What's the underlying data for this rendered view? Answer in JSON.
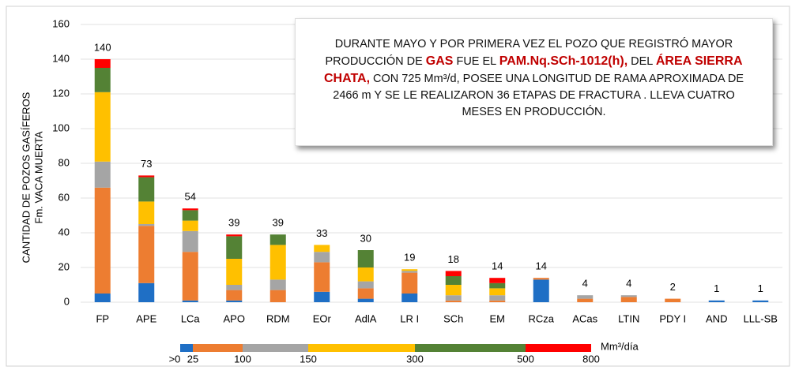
{
  "chart_data": {
    "type": "stacked_bar",
    "y_label": [
      "CANTIDAD DE POZOS GASÍFEROS",
      "Fm. VACA MUERTA"
    ],
    "categories": [
      "FP",
      "APE",
      "LCa",
      "APO",
      "RDM",
      "EOr",
      "AdlA",
      "LR I",
      "SCh",
      "EM",
      "RCza",
      "ACas",
      "LTIN",
      "PDY I",
      "AND",
      "LLL-SB"
    ],
    "series": [
      {
        "color": "#1f6fc5",
        "values": [
          5,
          11,
          1,
          1,
          0,
          6,
          2,
          5,
          0,
          0,
          13,
          0,
          0,
          0,
          1,
          1
        ]
      },
      {
        "color": "#ed7d31",
        "values": [
          61,
          33,
          28,
          6,
          7,
          17,
          6,
          12,
          1,
          1,
          1,
          2,
          3,
          2,
          0,
          0
        ]
      },
      {
        "color": "#a5a5a5",
        "values": [
          15,
          1,
          12,
          3,
          6,
          6,
          4,
          1,
          3,
          3,
          0,
          2,
          1,
          0,
          0,
          0
        ]
      },
      {
        "color": "#ffc000",
        "values": [
          40,
          13,
          6,
          15,
          20,
          4,
          8,
          1,
          6,
          4,
          0,
          0,
          0,
          0,
          0,
          0
        ]
      },
      {
        "color": "#548235",
        "values": [
          14,
          14,
          6,
          13,
          6,
          0,
          10,
          0,
          5,
          3,
          0,
          0,
          0,
          0,
          0,
          0
        ]
      },
      {
        "color": "#ff0000",
        "values": [
          5,
          1,
          1,
          1,
          0,
          0,
          0,
          0,
          3,
          3,
          0,
          0,
          0,
          0,
          0,
          0
        ]
      }
    ],
    "totals": [
      140,
      73,
      54,
      39,
      39,
      33,
      30,
      19,
      18,
      14,
      14,
      4,
      4,
      2,
      1,
      1
    ],
    "ylim": [
      0,
      160
    ],
    "yticks": [
      0,
      20,
      40,
      60,
      80,
      100,
      120,
      140,
      160
    ],
    "grid": true,
    "color_scale": {
      "ticks": [
        {
          "value": 0,
          "label": ">0"
        },
        25,
        100,
        150,
        300,
        500,
        800
      ],
      "unit": "Mm³/día"
    },
    "annotation": {
      "highlight_color": "#c00000",
      "runs": [
        {
          "text": "DURANTE MAYO Y POR PRIMERA VEZ EL POZO QUE REGISTRÓ MAYOR PRODUCCIÓN DE ",
          "highlight": false
        },
        {
          "text": "GAS",
          "highlight": true
        },
        {
          "text": " FUE EL ",
          "highlight": false
        },
        {
          "text": "PAM.Nq.SCh-1012(h),",
          "highlight": true
        },
        {
          "text": " DEL ",
          "highlight": false
        },
        {
          "text": "ÁREA SIERRA CHATA,",
          "highlight": true
        },
        {
          "text": " CON 725 Mm³/d, POSEE UNA LONGITUD DE RAMA APROXIMADA DE 2466 m Y SE LE REALIZARON 36 ETAPAS DE FRACTURA . LLEVA CUATRO MESES EN PRODUCCIÓN.",
          "highlight": false
        }
      ]
    }
  }
}
